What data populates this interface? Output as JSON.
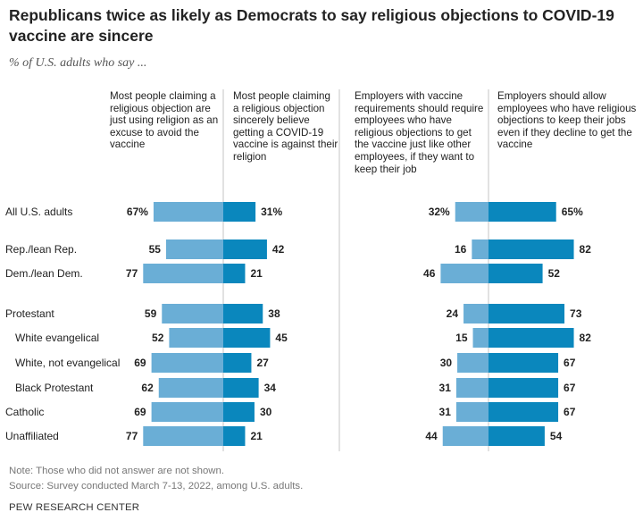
{
  "title": "Republicans twice as likely as Democrats to say religious objections to COVID-19 vaccine are sincere",
  "subtitle": "% of U.S. adults who say ...",
  "colors": {
    "light": "#6aaed6",
    "dark": "#0a87bd",
    "divider": "#c4c4c4"
  },
  "chart_data": {
    "type": "bar",
    "orientation": "horizontal-diverging",
    "categories": [
      "All U.S. adults",
      "Rep./lean Rep.",
      "Dem./lean Dem.",
      "Protestant",
      "White evangelical",
      "White, not evangelical",
      "Black Protestant",
      "Catholic",
      "Unaffiliated"
    ],
    "category_indent": [
      false,
      false,
      false,
      false,
      true,
      true,
      true,
      false,
      false
    ],
    "value_labels_with_percent": [
      true,
      false,
      false,
      false,
      false,
      false,
      false,
      false,
      false
    ],
    "panels": [
      {
        "series": [
          {
            "name": "Most people claiming a religious objection are just using religion as an excuse to avoid the vaccine",
            "values": [
              67,
              55,
              77,
              59,
              52,
              69,
              62,
              69,
              77
            ]
          },
          {
            "name": "Most people claiming a religious objection sincerely believe getting a COVID-19 vaccine is against their religion",
            "values": [
              31,
              42,
              21,
              38,
              45,
              27,
              34,
              30,
              21
            ]
          }
        ]
      },
      {
        "series": [
          {
            "name": "Employers with vaccine requirements should require employees who have religious objections to get the vaccine just like other employees, if they want to keep their job",
            "values": [
              32,
              16,
              46,
              24,
              15,
              30,
              31,
              31,
              44
            ]
          },
          {
            "name": "Employers should allow employees who have religious objections to keep their jobs even if they decline to get the vaccine",
            "values": [
              65,
              82,
              52,
              73,
              82,
              67,
              67,
              67,
              54
            ]
          }
        ]
      }
    ],
    "legend": "column headers above each bar direction"
  },
  "note": "Note: Those who did not answer are not shown.",
  "source": "Source: Survey conducted March 7-13, 2022, among U.S. adults.",
  "footer": "PEW RESEARCH CENTER"
}
